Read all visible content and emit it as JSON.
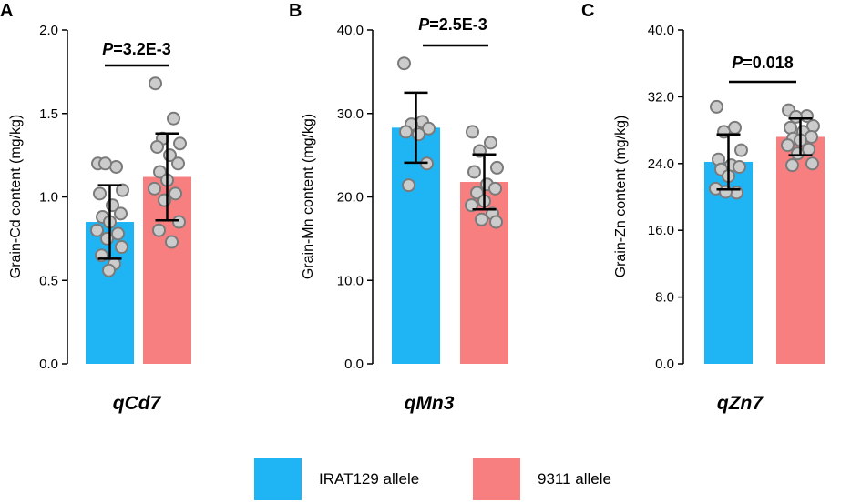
{
  "colors": {
    "irat": "#1fb4f4",
    "allele9311": "#f77f80",
    "point_fill": "#cccccc",
    "point_stroke": "#7a7a7a"
  },
  "legend": [
    {
      "label": "IRAT129 allele",
      "color": "#1fb4f4"
    },
    {
      "label": "9311 allele",
      "color": "#f77f80"
    }
  ],
  "chart_data": [
    {
      "type": "bar",
      "panel": "A",
      "ylabel": "Grain-Cd content (mg/kg)",
      "xlabel": "qCd7",
      "ylim": [
        0,
        2.0
      ],
      "yticks": [
        "0.0",
        "0.5",
        "1.0",
        "1.5",
        "2.0"
      ],
      "yticks_values": [
        0,
        0.5,
        1.0,
        1.5,
        2.0
      ],
      "p_prefix": "P",
      "p_value": "=3.2E-3",
      "categories": [
        "IRAT129 allele",
        "9311 allele"
      ],
      "series": [
        {
          "name": "IRAT129 allele",
          "mean": 0.85,
          "sd_low": 0.63,
          "sd_high": 1.07,
          "points": [
            1.2,
            1.18,
            1.2,
            1.04,
            1.02,
            0.95,
            0.9,
            0.88,
            0.85,
            0.8,
            0.78,
            0.75,
            0.7,
            0.65,
            0.6,
            0.56
          ]
        },
        {
          "name": "9311 allele",
          "mean": 1.12,
          "sd_low": 0.86,
          "sd_high": 1.38,
          "points": [
            1.68,
            1.47,
            1.35,
            1.32,
            1.3,
            1.25,
            1.2,
            1.15,
            1.1,
            1.05,
            1.02,
            0.98,
            0.85,
            0.8,
            0.73
          ]
        }
      ]
    },
    {
      "type": "bar",
      "panel": "B",
      "ylabel": "Grain-Mn content (mg/kg)",
      "xlabel": "qMn3",
      "ylim": [
        0,
        40.0
      ],
      "yticks": [
        "0.0",
        "10.0",
        "20.0",
        "30.0",
        "40.0"
      ],
      "yticks_values": [
        0,
        10,
        20,
        30,
        40
      ],
      "p_prefix": "P",
      "p_value": "=2.5E-3",
      "categories": [
        "IRAT129 allele",
        "9311 allele"
      ],
      "series": [
        {
          "name": "IRAT129 allele",
          "mean": 28.3,
          "sd_low": 24.1,
          "sd_high": 32.5,
          "points": [
            36.0,
            29.0,
            28.7,
            28.2,
            27.8,
            27.5,
            24.0,
            21.4
          ]
        },
        {
          "name": "9311 allele",
          "mean": 21.8,
          "sd_low": 18.5,
          "sd_high": 25.1,
          "points": [
            27.8,
            26.5,
            25.5,
            23.5,
            23.0,
            21.5,
            21.0,
            20.5,
            19.5,
            19.0,
            18.0,
            17.3,
            17.0
          ]
        }
      ]
    },
    {
      "type": "bar",
      "panel": "C",
      "ylabel": "Grain-Zn content (mg/kg)",
      "xlabel": "qZn7",
      "ylim": [
        0,
        40.0
      ],
      "yticks": [
        "0.0",
        "8.0",
        "16.0",
        "24.0",
        "32.0",
        "40.0"
      ],
      "yticks_values": [
        0,
        8,
        16,
        24,
        32,
        40
      ],
      "p_prefix": "P",
      "p_value": "=0.018",
      "categories": [
        "IRAT129 allele",
        "9311 allele"
      ],
      "series": [
        {
          "name": "IRAT129 allele",
          "mean": 24.2,
          "sd_low": 20.9,
          "sd_high": 27.5,
          "points": [
            30.8,
            28.3,
            27.8,
            25.6,
            24.5,
            23.8,
            23.6,
            23.3,
            22.5,
            21.0,
            20.5,
            20.6
          ]
        },
        {
          "name": "9311 allele",
          "mean": 27.2,
          "sd_low": 25.0,
          "sd_high": 29.4,
          "points": [
            30.4,
            29.7,
            29.6,
            28.5,
            28.3,
            27.8,
            27.2,
            27.0,
            26.8,
            26.2,
            25.7,
            25.2,
            24.0,
            23.8
          ]
        }
      ]
    }
  ]
}
